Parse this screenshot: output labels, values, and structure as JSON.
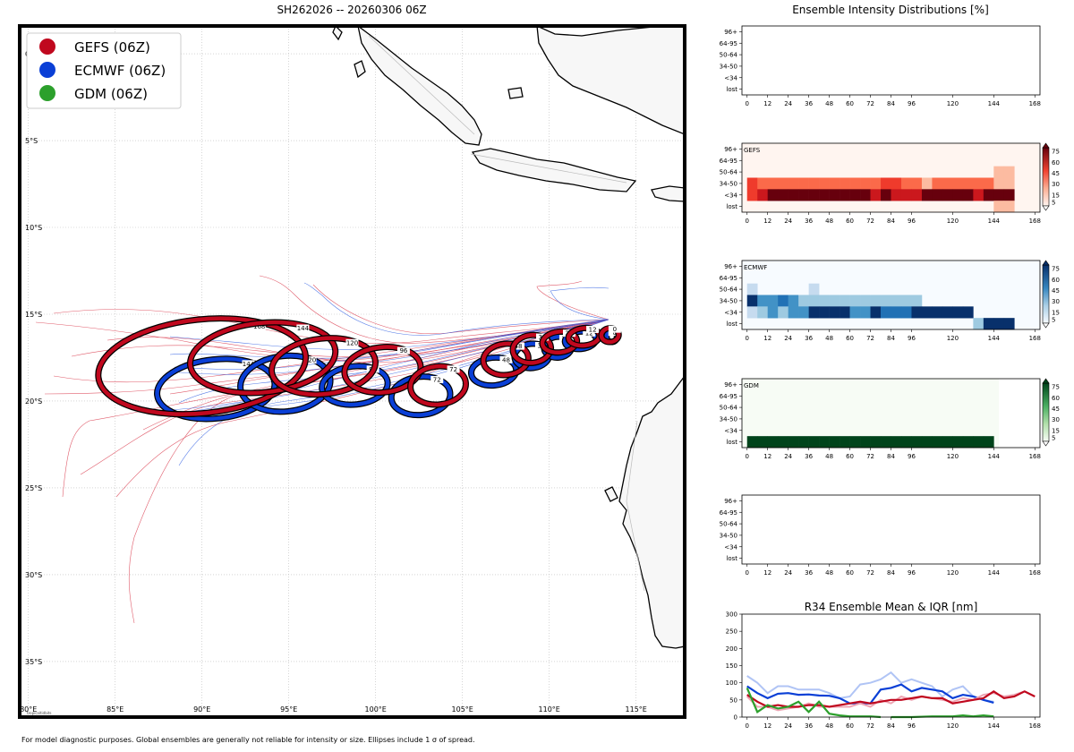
{
  "map": {
    "title": "SH262026 -- 20260306 06Z",
    "lon_ticks": [
      "80°E",
      "85°E",
      "90°E",
      "95°E",
      "100°E",
      "105°E",
      "110°E",
      "115°E"
    ],
    "lat_ticks": [
      "0°",
      "5°S",
      "10°S",
      "15°S",
      "20°S",
      "25°S",
      "30°S",
      "35°S"
    ],
    "credit": "tropicaltidbits",
    "legend": [
      {
        "label": "GEFS (06Z)",
        "color": "#c0081e"
      },
      {
        "label": "ECMWF (06Z)",
        "color": "#0a3fd6"
      },
      {
        "label": "GDM (06Z)",
        "color": "#2ca02c"
      }
    ]
  },
  "chart_data": [
    {
      "type": "track_ellipses",
      "title": "SH262026 -- 20260306 06Z",
      "xlim": [
        79.5,
        117.8
      ],
      "ylim": [
        -38.2,
        1.6
      ],
      "units": "degrees lon / lat",
      "series": [
        {
          "name": "GEFS",
          "color": "#c0081e",
          "ellipses": [
            {
              "hour": "0",
              "lon": 113.5,
              "lat": -16.2,
              "rx": 0.5,
              "ry": 0.4
            },
            {
              "hour": "12",
              "lon": 112.0,
              "lat": -16.3,
              "rx": 0.9,
              "ry": 0.5
            },
            {
              "hour": "24",
              "lon": 110.6,
              "lat": -16.6,
              "rx": 1.0,
              "ry": 0.6
            },
            {
              "hour": "36",
              "lon": 109.0,
              "lat": -17.0,
              "rx": 1.1,
              "ry": 0.8
            },
            {
              "hour": "48",
              "lon": 107.5,
              "lat": -17.6,
              "rx": 1.3,
              "ry": 0.9
            },
            {
              "hour": "72",
              "lon": 103.6,
              "lat": -19.1,
              "rx": 1.6,
              "ry": 1.1
            },
            {
              "hour": "96",
              "lon": 100.4,
              "lat": -18.2,
              "rx": 2.2,
              "ry": 1.3
            },
            {
              "hour": "120",
              "lon": 97.0,
              "lat": -18.0,
              "rx": 3.0,
              "ry": 1.6
            },
            {
              "hour": "144",
              "lon": 93.5,
              "lat": -17.5,
              "rx": 4.2,
              "ry": 2.0
            },
            {
              "hour": "168",
              "lon": 90.0,
              "lat": -18.0,
              "rx": 6.0,
              "ry": 2.7
            }
          ]
        },
        {
          "name": "ECMWF",
          "color": "#0a3fd6",
          "ellipses": [
            {
              "hour": "0",
              "lon": 113.6,
              "lat": -16.3,
              "rx": 0.3,
              "ry": 0.3
            },
            {
              "hour": "12",
              "lon": 111.8,
              "lat": -16.5,
              "rx": 0.9,
              "ry": 0.5
            },
            {
              "hour": "24",
              "lon": 110.5,
              "lat": -16.9,
              "rx": 0.8,
              "ry": 0.6
            },
            {
              "hour": "36",
              "lon": 109.0,
              "lat": -17.4,
              "rx": 1.0,
              "ry": 0.7
            },
            {
              "hour": "48",
              "lon": 106.8,
              "lat": -18.3,
              "rx": 1.3,
              "ry": 0.8
            },
            {
              "hour": "72",
              "lon": 102.6,
              "lat": -19.7,
              "rx": 1.7,
              "ry": 1.1
            },
            {
              "hour": "96",
              "lon": 98.8,
              "lat": -19.1,
              "rx": 1.9,
              "ry": 1.1
            },
            {
              "hour": "120",
              "lon": 94.8,
              "lat": -19.0,
              "rx": 2.6,
              "ry": 1.6
            },
            {
              "hour": "144",
              "lon": 90.8,
              "lat": -19.3,
              "rx": 3.4,
              "ry": 1.7
            }
          ]
        }
      ],
      "ellipse_labels": [
        "0",
        "12",
        "24",
        "36",
        "48",
        "72",
        "96",
        "120",
        "144",
        "168"
      ]
    },
    {
      "type": "heatmap",
      "title": "Ensemble Intensity Distributions [%]",
      "xticks": [
        0,
        12,
        24,
        36,
        48,
        60,
        72,
        84,
        96,
        120,
        144,
        168
      ],
      "ylabels": [
        "96+",
        "64-95",
        "50-64",
        "34-50",
        "<34",
        "lost"
      ],
      "colorbar_ticks": [
        5,
        15,
        30,
        45,
        60,
        75
      ],
      "panels": [
        {
          "name": "",
          "cmap": "none",
          "rows": []
        },
        {
          "name": "GEFS",
          "cmap": "Reds",
          "rows": {
            "34-50": [
              55,
              30,
              20,
              20,
              20,
              20,
              20,
              20,
              20,
              20,
              20,
              20,
              30,
              45,
              45,
              35,
              35,
              15,
              20,
              20,
              20,
              30,
              30,
              20,
              15,
              15
            ],
            "<34": [
              45,
              65,
              75,
              75,
              75,
              75,
              75,
              75,
              75,
              75,
              75,
              75,
              60,
              75,
              60,
              60,
              60,
              75,
              75,
              75,
              75,
              75,
              60,
              75,
              75,
              75
            ],
            "50-64": [
              0,
              0,
              0,
              0,
              0,
              0,
              0,
              0,
              0,
              0,
              0,
              0,
              0,
              0,
              0,
              0,
              0,
              0,
              0,
              0,
              0,
              0,
              0,
              0,
              15,
              15
            ],
            "lost": [
              0,
              0,
              0,
              0,
              0,
              0,
              0,
              0,
              0,
              0,
              0,
              0,
              0,
              0,
              0,
              0,
              0,
              0,
              0,
              0,
              0,
              0,
              0,
              0,
              5,
              5
            ]
          }
        },
        {
          "name": "ECMWF",
          "cmap": "Blues",
          "rows": {
            "50-64": [
              5,
              0,
              0,
              0,
              0,
              0,
              10,
              0,
              0,
              0,
              0,
              0,
              0,
              0,
              0,
              0,
              0,
              0,
              0,
              0,
              0,
              0,
              0,
              0,
              0,
              0
            ],
            "34-50": [
              75,
              45,
              45,
              60,
              45,
              30,
              20,
              20,
              20,
              20,
              30,
              30,
              30,
              30,
              20,
              20,
              20,
              0,
              0,
              0,
              0,
              0,
              0,
              0,
              0,
              0
            ],
            "<34": [
              10,
              25,
              50,
              40,
              50,
              50,
              75,
              75,
              75,
              75,
              50,
              50,
              75,
              60,
              60,
              60,
              75,
              75,
              75,
              75,
              75,
              75,
              0,
              0,
              0,
              0
            ],
            "lost": [
              0,
              0,
              0,
              0,
              0,
              0,
              0,
              0,
              0,
              0,
              0,
              0,
              0,
              0,
              0,
              0,
              0,
              0,
              0,
              0,
              0,
              0,
              25,
              75,
              75,
              75
            ]
          }
        },
        {
          "name": "GDM",
          "cmap": "Greens",
          "rows": {
            "lost": [
              75,
              75,
              75,
              75,
              75,
              75,
              75,
              75,
              75,
              75,
              75,
              75,
              75,
              75,
              75,
              75,
              75,
              75,
              75,
              75,
              75,
              75,
              75,
              75
            ]
          }
        },
        {
          "name": "",
          "cmap": "none",
          "rows": []
        }
      ]
    },
    {
      "type": "line",
      "title": "R34 Ensemble Mean & IQR [nm]",
      "xticks": [
        0,
        12,
        24,
        36,
        48,
        60,
        72,
        84,
        96,
        120,
        144,
        168
      ],
      "yticks": [
        0,
        50,
        100,
        150,
        200,
        250,
        300
      ],
      "ylim": [
        0,
        300
      ],
      "xlim": [
        -3,
        171
      ],
      "series": [
        {
          "name": "ECMWF IQR",
          "color": "#b0c4f5",
          "x": [
            0,
            6,
            12,
            18,
            24,
            30,
            36,
            42,
            48,
            54,
            60,
            66,
            72,
            78,
            84,
            90,
            96,
            102,
            108,
            114,
            120,
            126,
            132,
            138,
            144
          ],
          "y": [
            120,
            100,
            70,
            90,
            90,
            80,
            80,
            80,
            70,
            55,
            60,
            95,
            100,
            110,
            130,
            100,
            110,
            100,
            90,
            60,
            80,
            90,
            60,
            50,
            45
          ]
        },
        {
          "name": "ECMWF mean",
          "color": "#0a3fd6",
          "x": [
            0,
            6,
            12,
            18,
            24,
            30,
            36,
            42,
            48,
            54,
            60,
            66,
            72,
            78,
            84,
            90,
            96,
            102,
            108,
            114,
            120,
            126,
            132,
            138,
            144
          ],
          "y": [
            90,
            70,
            55,
            68,
            70,
            65,
            66,
            63,
            62,
            55,
            40,
            40,
            40,
            80,
            85,
            95,
            75,
            85,
            80,
            75,
            55,
            65,
            60,
            50,
            42
          ]
        },
        {
          "name": "GEFS IQR",
          "color": "#eda5b3",
          "x": [
            0,
            6,
            12,
            18,
            24,
            30,
            36,
            42,
            48,
            54,
            60,
            66,
            72,
            78,
            84,
            90,
            96,
            102,
            108,
            114,
            120,
            126,
            132,
            138,
            144,
            150,
            156,
            162,
            168
          ],
          "y": [
            60,
            30,
            30,
            20,
            25,
            30,
            40,
            30,
            30,
            30,
            30,
            40,
            30,
            50,
            40,
            60,
            50,
            60,
            55,
            50,
            45,
            55,
            50,
            65,
            70,
            60,
            65,
            75,
            60
          ]
        },
        {
          "name": "GEFS mean",
          "color": "#c0081e",
          "x": [
            0,
            6,
            12,
            18,
            24,
            30,
            36,
            42,
            48,
            54,
            60,
            66,
            72,
            78,
            84,
            90,
            96,
            102,
            108,
            114,
            120,
            126,
            132,
            138,
            144,
            150,
            156,
            162,
            168
          ],
          "y": [
            65,
            45,
            30,
            35,
            30,
            30,
            35,
            35,
            30,
            35,
            40,
            45,
            40,
            45,
            50,
            50,
            55,
            60,
            55,
            55,
            40,
            45,
            50,
            55,
            75,
            55,
            60,
            75,
            60
          ]
        },
        {
          "name": "GDM",
          "color": "#2ca02c",
          "x": [
            0,
            6,
            12,
            18,
            24,
            30,
            36,
            42,
            48,
            54,
            60,
            66,
            72,
            78
          ],
          "y": [
            85,
            15,
            35,
            25,
            30,
            45,
            15,
            45,
            10,
            5,
            2,
            2,
            2,
            0
          ]
        },
        {
          "name": "GDM (late)",
          "color": "#2ca02c",
          "x": [
            84,
            96,
            108,
            120,
            126,
            132,
            138,
            144
          ],
          "y": [
            0,
            0,
            2,
            2,
            5,
            2,
            5,
            2
          ]
        }
      ]
    }
  ],
  "footer": {
    "note": "For model diagnostic purposes. Global ensembles are generally not reliable for intensity or size. Ellipses include 1 σ of spread."
  }
}
